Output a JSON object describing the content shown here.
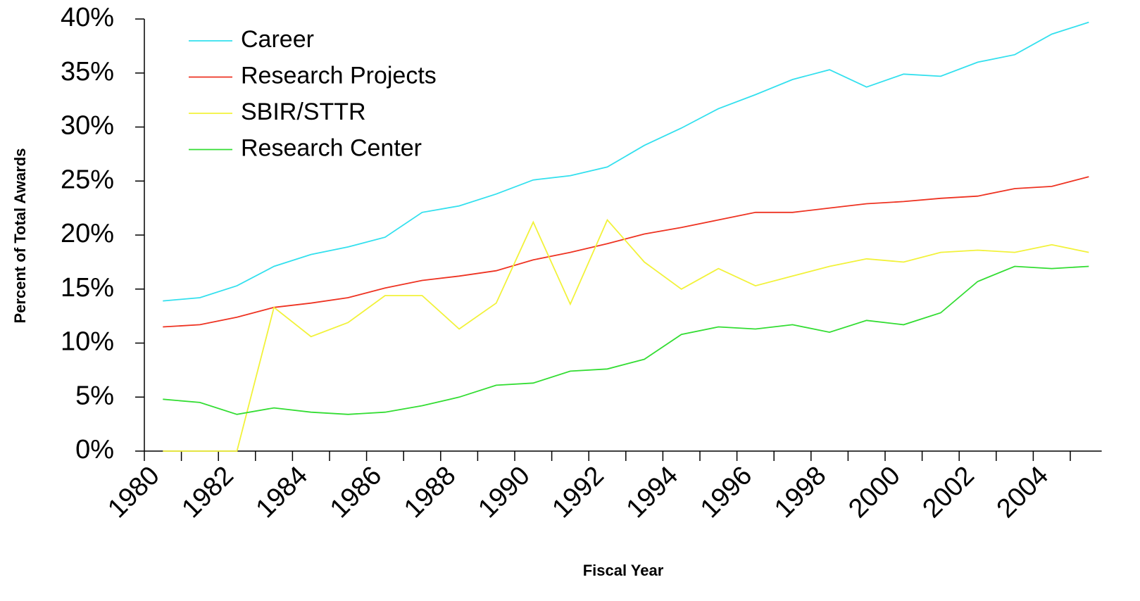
{
  "chart_data": {
    "type": "line",
    "x_label": "Fiscal Year",
    "y_label": "Percent of Total Awards",
    "categories": [
      "1980",
      null,
      "1982",
      null,
      "1984",
      null,
      "1986",
      null,
      "1988",
      null,
      "1990",
      null,
      "1992",
      null,
      "1994",
      null,
      "1996",
      null,
      "1998",
      null,
      "2000",
      null,
      "2002",
      null,
      "2004",
      null
    ],
    "series": [
      {
        "name": "Career",
        "color": "#33e0ee",
        "values": [
          13.9,
          14.2,
          15.3,
          17.1,
          18.2,
          18.9,
          19.8,
          22.1,
          22.7,
          23.8,
          25.1,
          25.5,
          26.3,
          28.3,
          29.9,
          31.7,
          33.0,
          34.4,
          35.3,
          33.7,
          34.9,
          34.7,
          36.0,
          36.7,
          38.6,
          39.7
        ]
      },
      {
        "name": "Research Projects",
        "color": "#ee3322",
        "values": [
          11.5,
          11.7,
          12.4,
          13.3,
          13.7,
          14.2,
          15.1,
          15.8,
          16.2,
          16.7,
          17.7,
          18.4,
          19.2,
          20.1,
          20.7,
          21.4,
          22.1,
          22.1,
          22.5,
          22.9,
          23.1,
          23.4,
          23.6,
          24.3,
          24.5,
          25.4
        ]
      },
      {
        "name": "SBIR/STTR",
        "color": "#f2f23a",
        "values": [
          0,
          0,
          0,
          13.3,
          10.6,
          11.9,
          14.4,
          14.4,
          11.3,
          13.7,
          21.2,
          13.6,
          21.4,
          17.5,
          15.0,
          16.9,
          15.3,
          16.2,
          17.1,
          17.8,
          17.5,
          18.4,
          18.6,
          18.4,
          19.1,
          18.4
        ]
      },
      {
        "name": "Research Center",
        "color": "#33dd33",
        "values": [
          4.8,
          4.5,
          3.4,
          4.0,
          3.6,
          3.4,
          3.6,
          4.2,
          5.0,
          6.1,
          6.3,
          7.4,
          7.6,
          8.5,
          10.8,
          11.5,
          11.3,
          11.7,
          11.0,
          12.1,
          11.7,
          12.8,
          15.7,
          17.1,
          16.9,
          17.1
        ]
      }
    ],
    "ylim": [
      0,
      40
    ],
    "yticks": [
      {
        "value": 0,
        "label": "0%"
      },
      {
        "value": 5,
        "label": "5%"
      },
      {
        "value": 10,
        "label": "10%"
      },
      {
        "value": 15,
        "label": "15%"
      },
      {
        "value": 20,
        "label": "20%"
      },
      {
        "value": 25,
        "label": "25%"
      },
      {
        "value": 30,
        "label": "30%"
      },
      {
        "value": 35,
        "label": "35%"
      },
      {
        "value": 40,
        "label": "40%"
      }
    ],
    "grid": false,
    "legend": "top-left"
  }
}
